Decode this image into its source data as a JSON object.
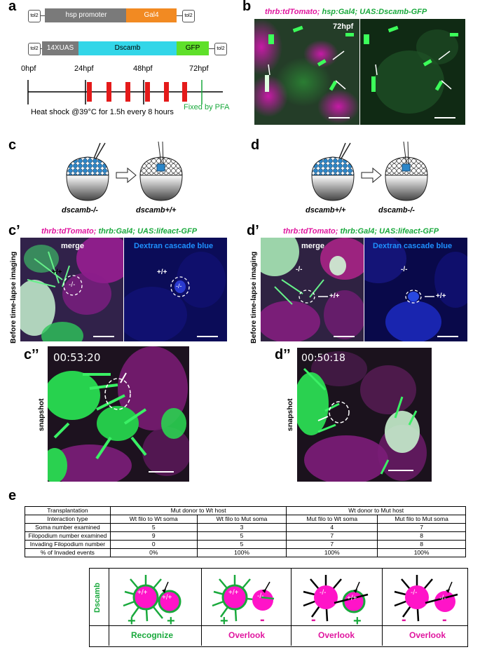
{
  "panels": {
    "a": "a",
    "b": "b",
    "c": "c",
    "d": "d",
    "c_prime": "c’",
    "d_prime": "d’",
    "c_dprime": "c’’",
    "d_dprime": "d’’",
    "e": "e"
  },
  "panel_a": {
    "construct1": {
      "tol_left": "tol2",
      "promoter": "hsp promoter",
      "gene": "Gal4",
      "tol_right": "tol2"
    },
    "construct2": {
      "tol_left": "tol2",
      "uas": "14XUAS",
      "gene": "Dscamb",
      "tag": "GFP",
      "tol_right": "tol2"
    },
    "timeline": {
      "t0": "0hpf",
      "t24": "24hpf",
      "t48": "48hpf",
      "t72": "72hpf",
      "heat_shock": "Heat shock @39°C for 1.5h every 8 hours",
      "fixed": "Fixed by PFA"
    }
  },
  "panel_b": {
    "caption_1": "thrb:tdTomato;",
    "caption_2": "hsp:Gal4; UAS:Dscamb-GFP",
    "time": "72hpf"
  },
  "panel_c": {
    "donor": "dscamb-/-",
    "host": "dscamb+/+"
  },
  "panel_d": {
    "donor": "dscamb+/+",
    "host": "dscamb-/-"
  },
  "panel_c_prime": {
    "caption_1": "thrb:tdTomato;",
    "caption_2": "thrb:Gal4; UAS:lifeact-GFP",
    "merge": "merge",
    "dextran": "Dextran cascade blue",
    "side": "Before time-lapse imaging",
    "wt": "+/+",
    "mut": "-/-"
  },
  "panel_d_prime": {
    "caption_1": "thrb:tdTomato;",
    "caption_2": "thrb:Gal4; UAS:lifeact-GFP",
    "merge": "merge",
    "dextran": "Dextran cascade blue",
    "side": "Before time-lapse imaging",
    "wt": "+/+",
    "mut": "-/-"
  },
  "panel_c_dprime": {
    "time": "00:53:20",
    "side": "snapshot"
  },
  "panel_d_dprime": {
    "time": "00:50:18",
    "side": "snapshot"
  },
  "panel_e": {
    "table": {
      "header": [
        "Transplantation",
        "Mut donor to Wt host",
        "Wt donor to Mut host"
      ],
      "rows": [
        [
          "Interaction type",
          "Wt filo to Wt soma",
          "Wt filo to Mut soma",
          "Mut filo to Wt soma",
          "Mut filo to Mut soma"
        ],
        [
          "Soma number examined",
          "5",
          "3",
          "4",
          "7"
        ],
        [
          "Filopodium number examined",
          "9",
          "5",
          "7",
          "8"
        ],
        [
          "Invading Filopodium number",
          "0",
          "5",
          "7",
          "8"
        ],
        [
          "% of Invaded events",
          "0%",
          "100%",
          "100%",
          "100%"
        ]
      ]
    },
    "legend": {
      "side": "Dscamb",
      "cells": [
        {
          "left": "+/+",
          "right": "+/+",
          "sign_left": "+",
          "sign_right": "+",
          "outcome": "Recognize"
        },
        {
          "left": "+/+",
          "right": "-/-",
          "sign_left": "+",
          "sign_right": "-",
          "outcome": "Overlook"
        },
        {
          "left": "-/-",
          "right": "+/+",
          "sign_left": "-",
          "sign_right": "+",
          "outcome": "Overlook"
        },
        {
          "left": "-/-",
          "right": "-/-",
          "sign_left": "-",
          "sign_right": "-",
          "outcome": "Overlook"
        }
      ]
    }
  },
  "colors": {
    "magenta": "#e0169f",
    "green": "#19a93c",
    "gal4": "#f28a22",
    "dscamb": "#33d6e8",
    "gfp": "#5fe02a",
    "heat": "#e41a1a"
  }
}
